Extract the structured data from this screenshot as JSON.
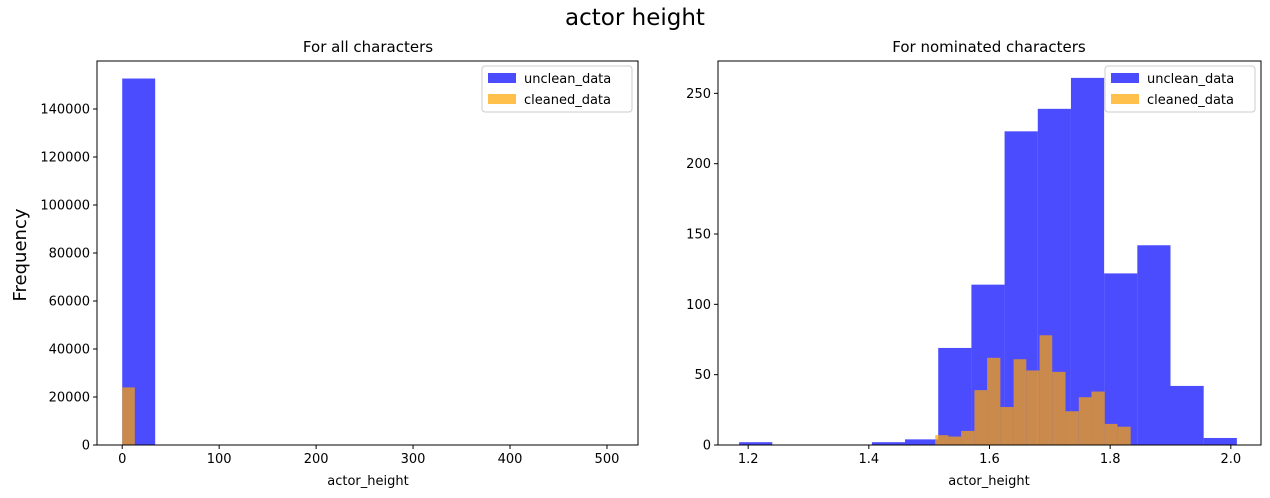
{
  "figure": {
    "title": "actor height",
    "ylabel": "Frequency"
  },
  "colors": {
    "unclean": "#0000ff",
    "cleaned": "#ffa500",
    "bar_alpha": 0.7
  },
  "chart_data": [
    {
      "type": "bar",
      "title": "For all characters",
      "xlabel": "actor_height",
      "ylabel": "Frequency",
      "xlim": [
        -26,
        532
      ],
      "ylim": [
        0,
        160000
      ],
      "xticks": [
        0,
        100,
        200,
        300,
        400,
        500
      ],
      "yticks": [
        0,
        20000,
        40000,
        60000,
        80000,
        100000,
        120000,
        140000
      ],
      "legend_position": "top-right",
      "grid": false,
      "series": [
        {
          "name": "unclean_data",
          "color_key": "unclean",
          "bins": [
            {
              "x0": 0,
              "x1": 34,
              "value": 152700
            },
            {
              "x0": 34,
              "x1": 68,
              "value": 0
            },
            {
              "x0": 68,
              "x1": 102,
              "value": 0
            },
            {
              "x0": 102,
              "x1": 136,
              "value": 0
            },
            {
              "x0": 136,
              "x1": 170,
              "value": 0
            },
            {
              "x0": 170,
              "x1": 204,
              "value": 0
            },
            {
              "x0": 204,
              "x1": 238,
              "value": 0
            },
            {
              "x0": 238,
              "x1": 272,
              "value": 0
            },
            {
              "x0": 272,
              "x1": 306,
              "value": 0
            },
            {
              "x0": 306,
              "x1": 340,
              "value": 0
            },
            {
              "x0": 340,
              "x1": 374,
              "value": 0
            },
            {
              "x0": 374,
              "x1": 408,
              "value": 0
            },
            {
              "x0": 408,
              "x1": 442,
              "value": 0
            },
            {
              "x0": 442,
              "x1": 476,
              "value": 0
            },
            {
              "x0": 476,
              "x1": 510,
              "value": 0
            }
          ]
        },
        {
          "name": "cleaned_data",
          "color_key": "cleaned",
          "bins": [
            {
              "x0": 0,
              "x1": 13,
              "value": 24000
            }
          ]
        }
      ]
    },
    {
      "type": "bar",
      "title": "For nominated characters",
      "xlabel": "actor_height",
      "ylabel": "",
      "xlim": [
        1.15,
        2.05
      ],
      "ylim": [
        0,
        273
      ],
      "xticks": [
        1.2,
        1.4,
        1.6,
        1.8,
        2.0
      ],
      "yticks": [
        0,
        50,
        100,
        150,
        200,
        250
      ],
      "legend_position": "top-right",
      "grid": false,
      "series": [
        {
          "name": "unclean_data",
          "color_key": "unclean",
          "bins": [
            {
              "x0": 1.185,
              "x1": 1.24,
              "value": 2
            },
            {
              "x0": 1.24,
              "x1": 1.295,
              "value": 0
            },
            {
              "x0": 1.295,
              "x1": 1.35,
              "value": 0
            },
            {
              "x0": 1.35,
              "x1": 1.405,
              "value": 0
            },
            {
              "x0": 1.405,
              "x1": 1.46,
              "value": 2
            },
            {
              "x0": 1.46,
              "x1": 1.515,
              "value": 4
            },
            {
              "x0": 1.515,
              "x1": 1.57,
              "value": 69
            },
            {
              "x0": 1.57,
              "x1": 1.625,
              "value": 114
            },
            {
              "x0": 1.625,
              "x1": 1.68,
              "value": 223
            },
            {
              "x0": 1.68,
              "x1": 1.735,
              "value": 239
            },
            {
              "x0": 1.735,
              "x1": 1.79,
              "value": 261
            },
            {
              "x0": 1.79,
              "x1": 1.845,
              "value": 122
            },
            {
              "x0": 1.845,
              "x1": 1.9,
              "value": 142
            },
            {
              "x0": 1.9,
              "x1": 1.955,
              "value": 42
            },
            {
              "x0": 1.955,
              "x1": 2.01,
              "value": 5
            }
          ]
        },
        {
          "name": "cleaned_data",
          "color_key": "cleaned",
          "bins": [
            {
              "x0": 1.51,
              "x1": 1.532,
              "value": 7
            },
            {
              "x0": 1.532,
              "x1": 1.553,
              "value": 6
            },
            {
              "x0": 1.553,
              "x1": 1.575,
              "value": 10
            },
            {
              "x0": 1.575,
              "x1": 1.596,
              "value": 39
            },
            {
              "x0": 1.596,
              "x1": 1.618,
              "value": 62
            },
            {
              "x0": 1.618,
              "x1": 1.64,
              "value": 27
            },
            {
              "x0": 1.64,
              "x1": 1.661,
              "value": 61
            },
            {
              "x0": 1.661,
              "x1": 1.683,
              "value": 53
            },
            {
              "x0": 1.683,
              "x1": 1.704,
              "value": 78
            },
            {
              "x0": 1.704,
              "x1": 1.726,
              "value": 52
            },
            {
              "x0": 1.726,
              "x1": 1.748,
              "value": 24
            },
            {
              "x0": 1.748,
              "x1": 1.769,
              "value": 34
            },
            {
              "x0": 1.769,
              "x1": 1.791,
              "value": 38
            },
            {
              "x0": 1.791,
              "x1": 1.812,
              "value": 15
            },
            {
              "x0": 1.812,
              "x1": 1.834,
              "value": 13
            }
          ]
        }
      ]
    }
  ]
}
